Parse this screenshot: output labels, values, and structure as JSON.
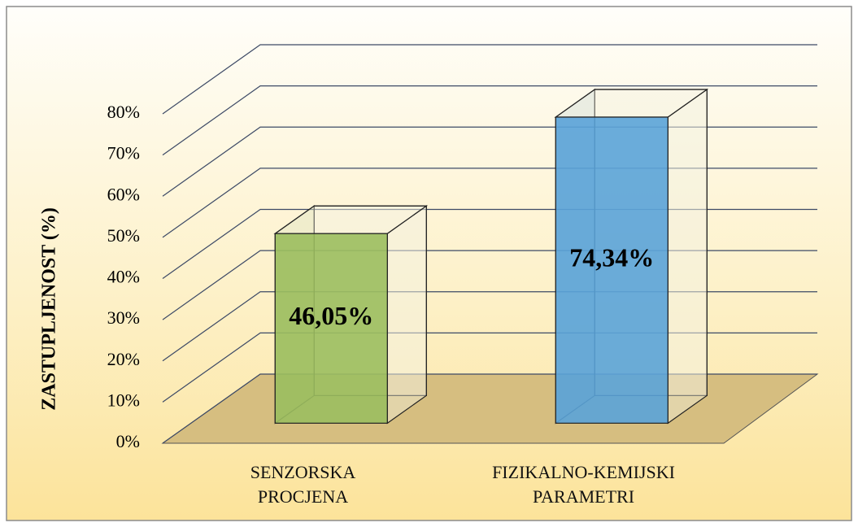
{
  "chart_data": {
    "type": "bar3d",
    "y_axis_label": "ZASTUPLJENOST (%)",
    "categories": [
      "SENZORSKA\nPROCJENA",
      "FIZIKALNO-KEMIJSKI\nPARAMETRI"
    ],
    "values": [
      46.05,
      74.34
    ],
    "value_labels": [
      "46,05%",
      "74,34%"
    ],
    "colors": [
      "#9bbe5f",
      "#5aa3d8"
    ],
    "ylim": [
      0,
      80
    ],
    "yticks": [
      {
        "value": 0,
        "label": "0%"
      },
      {
        "value": 10,
        "label": "10%"
      },
      {
        "value": 20,
        "label": "20%"
      },
      {
        "value": 30,
        "label": "30%"
      },
      {
        "value": 40,
        "label": "40%"
      },
      {
        "value": 50,
        "label": "50%"
      },
      {
        "value": 60,
        "label": "60%"
      },
      {
        "value": 70,
        "label": "70%"
      },
      {
        "value": 80,
        "label": "80%"
      }
    ],
    "grid": true
  }
}
